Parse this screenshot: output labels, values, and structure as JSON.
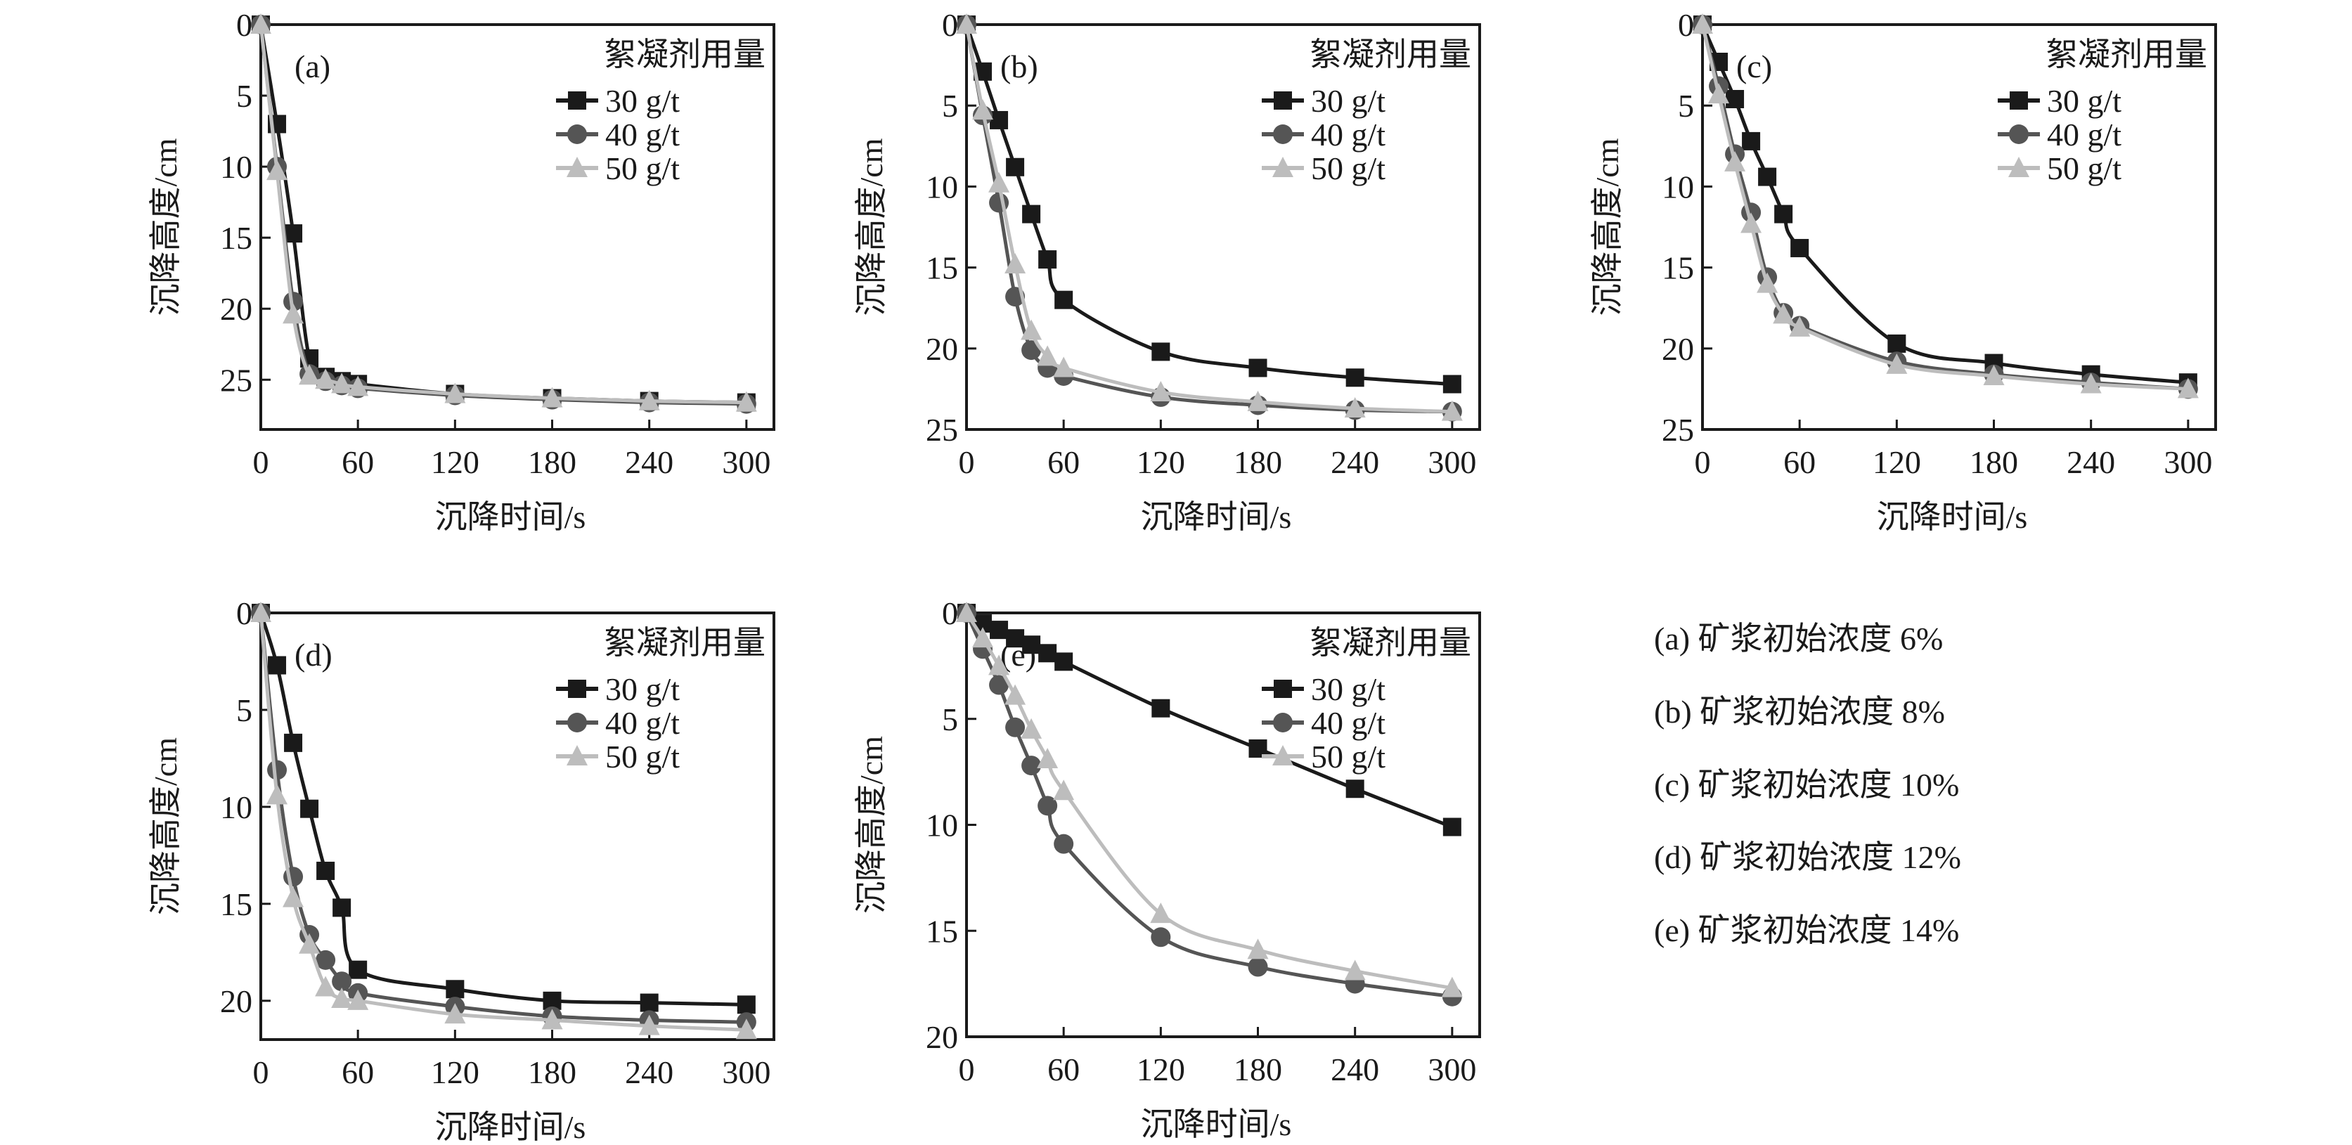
{
  "colors": {
    "30 g/t": "#1a1a1a",
    "40 g/t": "#555555",
    "50 g/t": "#bdbdbd"
  },
  "markers": {
    "30 g/t": "square",
    "40 g/t": "circle",
    "50 g/t": "triangle"
  },
  "chart_data": [
    {
      "panel_label": "(a)",
      "type": "line",
      "xlabel": "沉降时间/s",
      "ylabel": "沉降高度/cm",
      "legend_title": "絮凝剂用量",
      "legend_placement": "top-right",
      "y_inverted": true,
      "xlim": [
        0,
        317
      ],
      "ylim": [
        0,
        28.5
      ],
      "xticks": [
        "0",
        "60",
        "120",
        "180",
        "240",
        "300"
      ],
      "yticks": [
        "0",
        "5",
        "10",
        "15",
        "20",
        "25"
      ],
      "x": [
        0,
        10,
        20,
        30,
        40,
        50,
        60,
        120,
        180,
        240,
        300
      ],
      "series": [
        {
          "name": "30 g/t",
          "values": [
            0,
            7,
            14.7,
            23.5,
            24.8,
            25.1,
            25.3,
            26,
            26.3,
            26.5,
            26.6
          ]
        },
        {
          "name": "40 g/t",
          "values": [
            0,
            10,
            19.5,
            24.6,
            25.1,
            25.4,
            25.6,
            26.1,
            26.4,
            26.6,
            26.7
          ]
        },
        {
          "name": "50 g/t",
          "values": [
            0,
            10.3,
            20.4,
            24.7,
            25,
            25.3,
            25.5,
            26,
            26.3,
            26.5,
            26.6
          ]
        }
      ]
    },
    {
      "panel_label": "(b)",
      "type": "line",
      "xlabel": "沉降时间/s",
      "ylabel": "沉降高度/cm",
      "legend_title": "絮凝剂用量",
      "legend_placement": "top-right",
      "y_inverted": true,
      "xlim": [
        0,
        317
      ],
      "ylim": [
        0,
        25
      ],
      "xticks": [
        "0",
        "60",
        "120",
        "180",
        "240",
        "300"
      ],
      "yticks": [
        "0",
        "5",
        "10",
        "15",
        "20",
        "25"
      ],
      "x": [
        0,
        10,
        20,
        30,
        40,
        50,
        60,
        120,
        180,
        240,
        300
      ],
      "series": [
        {
          "name": "30 g/t",
          "values": [
            0,
            2.9,
            5.9,
            8.8,
            11.7,
            14.5,
            17,
            20.2,
            21.2,
            21.8,
            22.2
          ]
        },
        {
          "name": "40 g/t",
          "values": [
            0,
            5.6,
            11,
            16.8,
            20.1,
            21.2,
            21.7,
            23,
            23.5,
            23.8,
            23.9
          ]
        },
        {
          "name": "50 g/t",
          "values": [
            0,
            5.3,
            9.8,
            14.8,
            18.9,
            20.5,
            21.2,
            22.7,
            23.3,
            23.7,
            23.9
          ]
        }
      ]
    },
    {
      "panel_label": "(c)",
      "type": "line",
      "xlabel": "沉降时间/s",
      "ylabel": "沉降高度/cm",
      "legend_title": "絮凝剂用量",
      "legend_placement": "top-right",
      "y_inverted": true,
      "xlim": [
        0,
        317
      ],
      "ylim": [
        0,
        25
      ],
      "xticks": [
        "0",
        "60",
        "120",
        "180",
        "240",
        "300"
      ],
      "yticks": [
        "0",
        "5",
        "10",
        "15",
        "20",
        "25"
      ],
      "x": [
        0,
        10,
        20,
        30,
        40,
        50,
        60,
        120,
        180,
        240,
        300
      ],
      "series": [
        {
          "name": "30 g/t",
          "values": [
            0,
            2.3,
            4.6,
            7.2,
            9.4,
            11.7,
            13.8,
            19.7,
            20.9,
            21.6,
            22.1
          ]
        },
        {
          "name": "40 g/t",
          "values": [
            0,
            3.8,
            8,
            11.6,
            15.6,
            17.8,
            18.6,
            20.8,
            21.6,
            22.1,
            22.5
          ]
        },
        {
          "name": "50 g/t",
          "values": [
            0,
            4.3,
            8.5,
            12.3,
            16,
            17.9,
            18.7,
            21,
            21.7,
            22.2,
            22.5
          ]
        }
      ]
    },
    {
      "panel_label": "(d)",
      "type": "line",
      "xlabel": "沉降时间/s",
      "ylabel": "沉降高度/cm",
      "legend_title": "絮凝剂用量",
      "legend_placement": "top-right",
      "y_inverted": true,
      "xlim": [
        0,
        317
      ],
      "ylim": [
        0,
        22
      ],
      "xticks": [
        "0",
        "60",
        "120",
        "180",
        "240",
        "300"
      ],
      "yticks": [
        "0",
        "5",
        "10",
        "15",
        "20"
      ],
      "x": [
        0,
        10,
        20,
        30,
        40,
        50,
        60,
        120,
        180,
        240,
        300
      ],
      "series": [
        {
          "name": "30 g/t",
          "values": [
            0,
            2.7,
            6.7,
            10.1,
            13.3,
            15.2,
            18.4,
            19.4,
            20,
            20.1,
            20.2
          ]
        },
        {
          "name": "40 g/t",
          "values": [
            0,
            8.1,
            13.6,
            16.6,
            17.9,
            19,
            19.6,
            20.3,
            20.8,
            21,
            21.1
          ]
        },
        {
          "name": "50 g/t",
          "values": [
            0,
            9.4,
            14.7,
            17.1,
            19.3,
            19.9,
            20,
            20.7,
            21,
            21.3,
            21.5
          ]
        }
      ]
    },
    {
      "panel_label": "(e)",
      "type": "line",
      "xlabel": "沉降时间/s",
      "ylabel": "沉降高度/cm",
      "legend_title": "絮凝剂用量",
      "legend_placement": "top-right",
      "y_inverted": true,
      "xlim": [
        0,
        317
      ],
      "ylim": [
        0,
        20
      ],
      "xticks": [
        "0",
        "60",
        "120",
        "180",
        "240",
        "300"
      ],
      "yticks": [
        "0",
        "5",
        "10",
        "15",
        "20"
      ],
      "x": [
        0,
        10,
        20,
        30,
        40,
        50,
        60,
        120,
        180,
        240,
        300
      ],
      "series": [
        {
          "name": "30 g/t",
          "values": [
            0,
            0.5,
            0.8,
            1.2,
            1.5,
            1.9,
            2.3,
            4.5,
            6.4,
            8.3,
            10.1
          ]
        },
        {
          "name": "40 g/t",
          "values": [
            0,
            1.7,
            3.4,
            5.4,
            7.2,
            9.1,
            10.9,
            15.3,
            16.7,
            17.5,
            18.1
          ]
        },
        {
          "name": "50 g/t",
          "values": [
            0,
            1.2,
            2.5,
            3.9,
            5.5,
            6.9,
            8.4,
            14.2,
            15.9,
            16.9,
            17.7
          ]
        }
      ]
    }
  ],
  "captions": [
    "(a) 矿浆初始浓度 6%",
    "(b) 矿浆初始浓度 8%",
    "(c) 矿浆初始浓度 10%",
    "(d) 矿浆初始浓度 12%",
    "(e) 矿浆初始浓度 14%"
  ]
}
